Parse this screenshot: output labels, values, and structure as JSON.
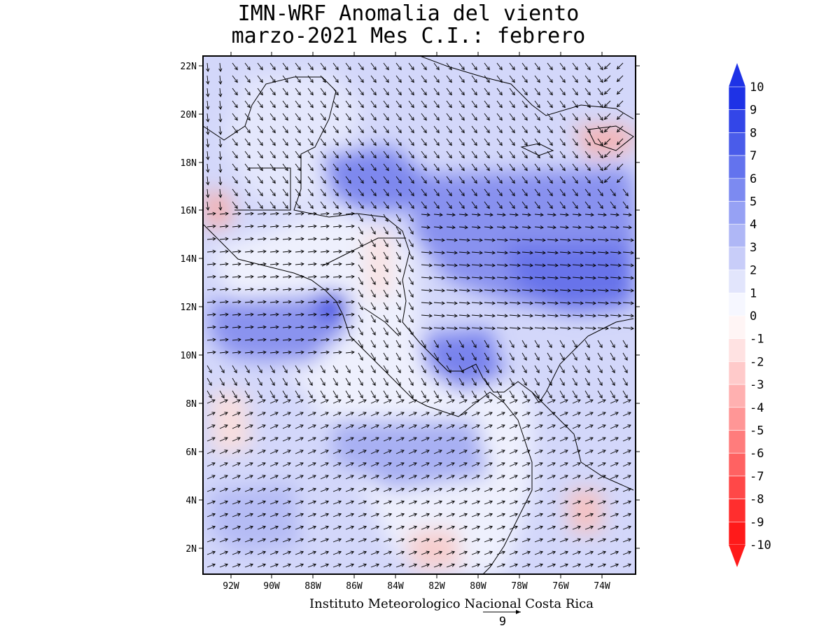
{
  "title": {
    "line1": "IMN-WRF Anomalia del viento",
    "line2": "marzo-2021 Mes C.I.: febrero"
  },
  "map": {
    "lat_labels": [
      "22N",
      "20N",
      "18N",
      "16N",
      "14N",
      "12N",
      "10N",
      "8N",
      "6N",
      "4N",
      "2N"
    ],
    "lon_labels": [
      "92W",
      "90W",
      "88W",
      "86W",
      "84W",
      "82W",
      "80W",
      "78W",
      "76W",
      "74W"
    ],
    "fill_colors": {
      "ocean_positive": "#c9cdf7",
      "strong_positive": "#6f78ea",
      "max_positive": "#2b3be2",
      "weak_positive": "#eceefd",
      "negative": "#f8d3d3",
      "land": "#f3f4fe"
    }
  },
  "colorbar": {
    "labels": [
      "10",
      "9",
      "8",
      "7",
      "6",
      "5",
      "4",
      "3",
      "2",
      "1",
      "0",
      "-1",
      "-2",
      "-3",
      "-4",
      "-5",
      "-6",
      "-7",
      "-8",
      "-9",
      "-10"
    ],
    "colors": [
      "#1e32e6",
      "#3346e8",
      "#4a5cea",
      "#6373ee",
      "#7c8af1",
      "#96a1f4",
      "#afb7f6",
      "#c8cdf9",
      "#e2e5fc",
      "#f6f7ff",
      "#fff5f5",
      "#ffe2e2",
      "#ffcaca",
      "#ffb0b0",
      "#ff9696",
      "#ff7c7c",
      "#ff6262",
      "#ff4848",
      "#ff2e2e",
      "#ff1a1a"
    ],
    "top_arrow_color": "#1e32e6",
    "bottom_arrow_color": "#ff1a1a"
  },
  "footer": {
    "institute": "Instituto Meteorologico Nacional Costa Rica",
    "reference_vector_value": "9"
  }
}
